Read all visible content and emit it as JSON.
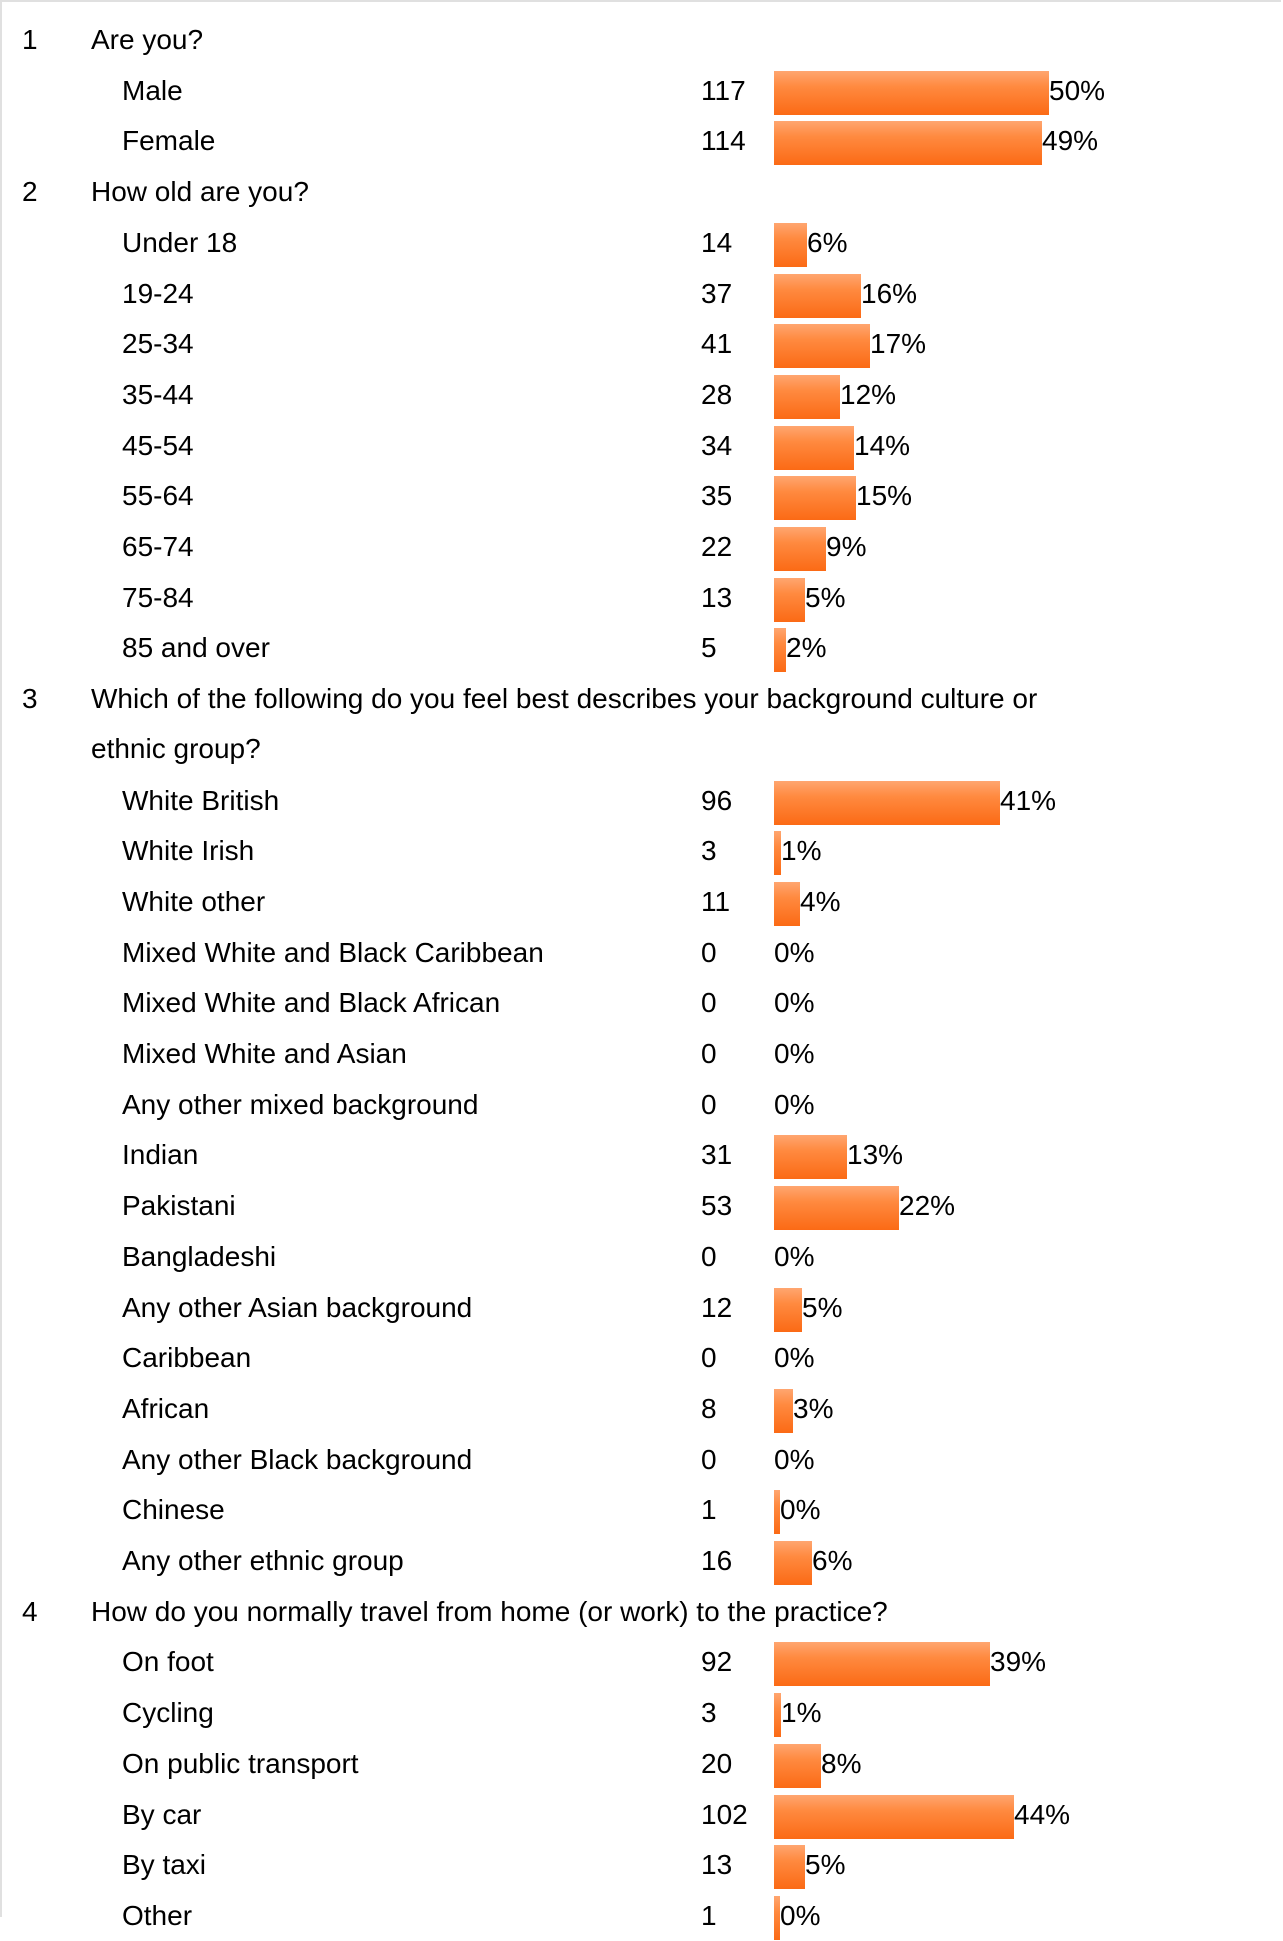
{
  "chart_data": {
    "type": "bar",
    "title": "",
    "questions": [
      {
        "number": "1",
        "text": "Are you?",
        "items": [
          {
            "label": "Male",
            "count": 117,
            "percent": 50
          },
          {
            "label": "Female",
            "count": 114,
            "percent": 49
          }
        ]
      },
      {
        "number": "2",
        "text": "How old are you?",
        "items": [
          {
            "label": "Under 18",
            "count": 14,
            "percent": 6
          },
          {
            "label": "19-24",
            "count": 37,
            "percent": 16
          },
          {
            "label": "25-34",
            "count": 41,
            "percent": 17
          },
          {
            "label": "35-44",
            "count": 28,
            "percent": 12
          },
          {
            "label": "45-54",
            "count": 34,
            "percent": 14
          },
          {
            "label": "55-64",
            "count": 35,
            "percent": 15
          },
          {
            "label": "65-74",
            "count": 22,
            "percent": 9
          },
          {
            "label": "75-84",
            "count": 13,
            "percent": 5
          },
          {
            "label": "85 and over",
            "count": 5,
            "percent": 2
          }
        ]
      },
      {
        "number": "3",
        "text": "Which of the following do you feel best describes your background culture or",
        "text_line2": "ethnic group?",
        "items": [
          {
            "label": "White British",
            "count": 96,
            "percent": 41
          },
          {
            "label": "White Irish",
            "count": 3,
            "percent": 1
          },
          {
            "label": "White other",
            "count": 11,
            "percent": 4
          },
          {
            "label": "Mixed White and Black Caribbean",
            "count": 0,
            "percent": 0
          },
          {
            "label": "Mixed White and Black African",
            "count": 0,
            "percent": 0
          },
          {
            "label": "Mixed White and Asian",
            "count": 0,
            "percent": 0
          },
          {
            "label": "Any other mixed background",
            "count": 0,
            "percent": 0
          },
          {
            "label": "Indian",
            "count": 31,
            "percent": 13
          },
          {
            "label": "Pakistani",
            "count": 53,
            "percent": 22
          },
          {
            "label": "Bangladeshi",
            "count": 0,
            "percent": 0
          },
          {
            "label": "Any other Asian background",
            "count": 12,
            "percent": 5
          },
          {
            "label": "Caribbean",
            "count": 0,
            "percent": 0
          },
          {
            "label": "African",
            "count": 8,
            "percent": 3
          },
          {
            "label": "Any other Black background",
            "count": 0,
            "percent": 0
          },
          {
            "label": "Chinese",
            "count": 1,
            "percent": 0
          },
          {
            "label": "Any other ethnic group",
            "count": 16,
            "percent": 6
          }
        ]
      },
      {
        "number": "4",
        "text": "How do you normally travel from home (or work) to the practice?",
        "items": [
          {
            "label": "On foot",
            "count": 92,
            "percent": 39
          },
          {
            "label": "Cycling",
            "count": 3,
            "percent": 1
          },
          {
            "label": "On public transport",
            "count": 20,
            "percent": 8
          },
          {
            "label": "By car",
            "count": 102,
            "percent": 44
          },
          {
            "label": "By taxi",
            "count": 13,
            "percent": 5
          },
          {
            "label": "Other",
            "count": 1,
            "percent": 0
          }
        ]
      }
    ]
  },
  "colors": {
    "bar_top": "#ffa670",
    "bar_bottom": "#fb6a15",
    "frame_border": "#e0e0e0"
  }
}
